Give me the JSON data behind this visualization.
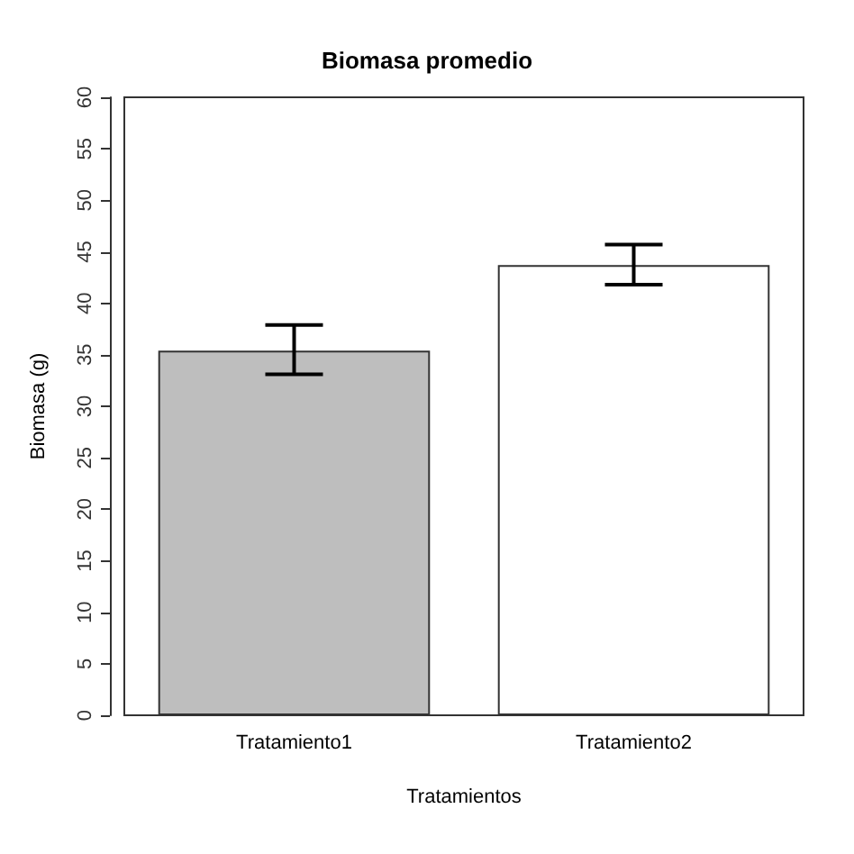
{
  "chart_data": {
    "type": "bar",
    "title": "Biomasa promedio",
    "xlabel": "Tratamientos",
    "ylabel": "Biomasa (g)",
    "categories": [
      "Tratamiento1",
      "Tratamiento2"
    ],
    "values": [
      35.4,
      43.7
    ],
    "colors": [
      "#bebebe",
      "#ffffff"
    ],
    "errors": [
      [
        33.1,
        37.9
      ],
      [
        41.8,
        45.7
      ]
    ],
    "ylim": [
      0,
      60
    ],
    "yticks": [
      0,
      5,
      10,
      15,
      20,
      25,
      30,
      35,
      40,
      45,
      50,
      55,
      60
    ],
    "grid": false
  }
}
